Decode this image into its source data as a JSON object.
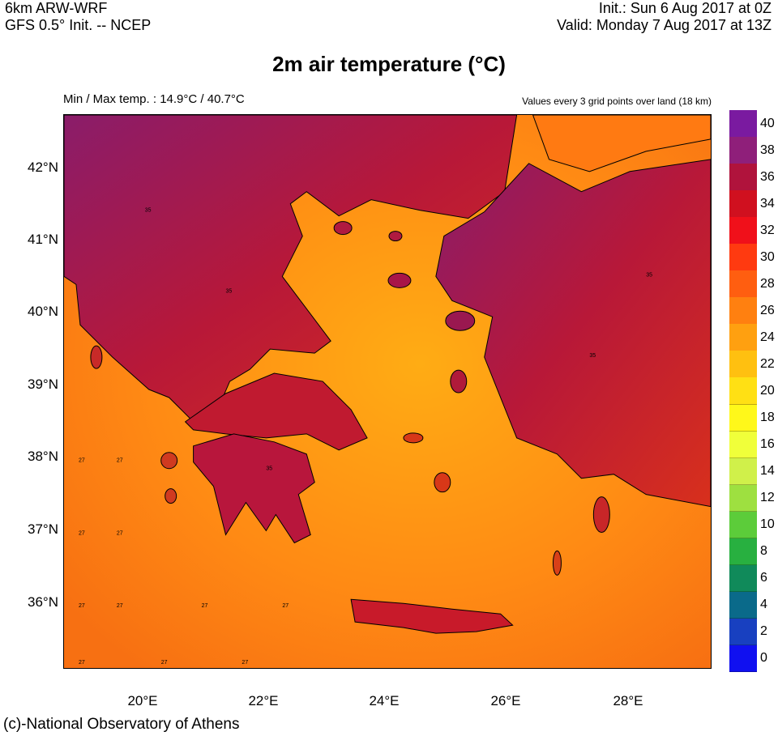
{
  "header": {
    "model": "6km ARW-WRF",
    "init_source": "GFS 0.5° Init. -- NCEP",
    "init_time": "Init.:  Sun 6 Aug 2017 at 0Z",
    "valid_time": "Valid: Monday 7 Aug 2017 at 13Z"
  },
  "title": "2m air temperature (°C)",
  "subtitle_left": "Min / Max temp. : 14.9°C / 40.7°C",
  "subtitle_right": "Values every 3 grid points over land (18 km)",
  "credit": "(c)-National Observatory of Athens",
  "map": {
    "lat_labels": [
      "42°N",
      "41°N",
      "40°N",
      "39°N",
      "38°N",
      "37°N",
      "36°N"
    ],
    "lon_labels": [
      "20°E",
      "22°E",
      "24°E",
      "26°E",
      "28°E"
    ],
    "sea_value_sample": "27",
    "land_value_sample": "35"
  },
  "legend": {
    "labels": [
      "40",
      "38",
      "36",
      "34",
      "32",
      "30",
      "28",
      "26",
      "24",
      "22",
      "20",
      "18",
      "16",
      "14",
      "12",
      "10",
      "8",
      "6",
      "4",
      "2",
      "0"
    ],
    "colors": [
      "#7a1aa0",
      "#8f1f7a",
      "#b0133c",
      "#d0101f",
      "#f0101a",
      "#ff3a10",
      "#ff5e10",
      "#ff8010",
      "#ffa010",
      "#ffc010",
      "#ffe014",
      "#fff81a",
      "#f0ff3a",
      "#d0f04a",
      "#9ee040",
      "#5ccc3a",
      "#28b040",
      "#108a5a",
      "#0a6a8a",
      "#1840c0",
      "#1010f0"
    ]
  }
}
